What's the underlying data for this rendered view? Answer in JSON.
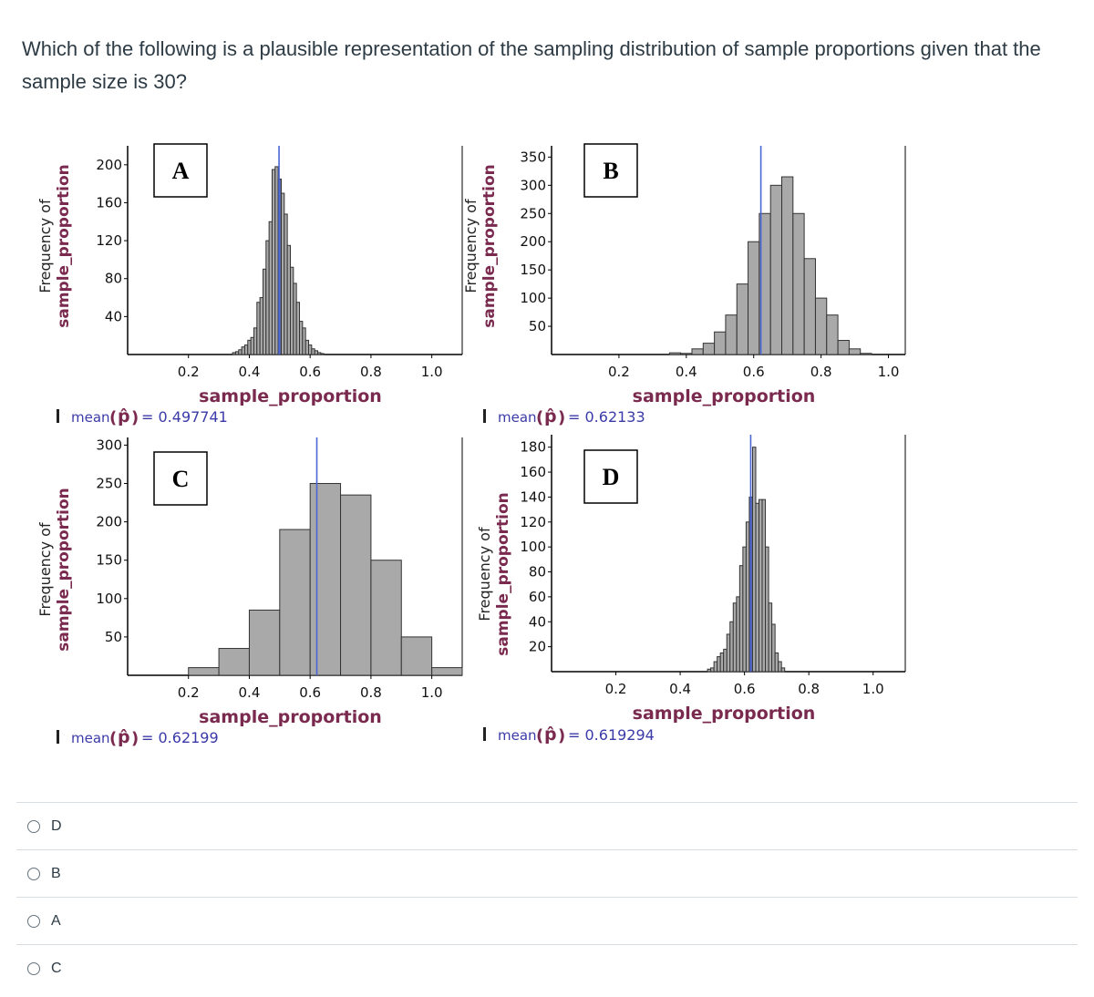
{
  "question": {
    "text": "Which of the following is a plausible representation of the sampling distribution of sample proportions given that the sample size is 30?"
  },
  "colors": {
    "bar_fill": "#a9a9a9",
    "mean_line": "#4a66d6",
    "mean_bar": "#5d6fb3"
  },
  "chart_data": [
    {
      "type": "bar",
      "panel_label": "A",
      "xlabel": "sample_proportion",
      "ylabel": "Frequency of sample_proportion",
      "xticks": [
        "0.2",
        "0.4",
        "0.6",
        "0.8",
        "1.0"
      ],
      "yticks": [
        "40",
        "80",
        "120",
        "160",
        "200"
      ],
      "xlim": [
        0.0,
        1.1
      ],
      "ylim": [
        0,
        220
      ],
      "bin_width": 0.01,
      "x": [
        0.35,
        0.36,
        0.37,
        0.38,
        0.39,
        0.4,
        0.41,
        0.42,
        0.43,
        0.44,
        0.45,
        0.46,
        0.47,
        0.48,
        0.49,
        0.5,
        0.51,
        0.52,
        0.53,
        0.54,
        0.55,
        0.56,
        0.57,
        0.58,
        0.59,
        0.6,
        0.61,
        0.62,
        0.63,
        0.64
      ],
      "values": [
        2,
        3,
        5,
        8,
        10,
        15,
        18,
        28,
        55,
        60,
        90,
        120,
        140,
        195,
        198,
        185,
        170,
        148,
        115,
        92,
        75,
        55,
        35,
        28,
        15,
        10,
        6,
        4,
        2,
        1
      ],
      "mean_value": 0.497741,
      "mean_label": "mean",
      "mean_text": "= 0.497741"
    },
    {
      "type": "bar",
      "panel_label": "B",
      "xlabel": "sample_proportion",
      "ylabel": "Frequency of sample_proportion",
      "xticks": [
        "0.2",
        "0.4",
        "0.6",
        "0.8",
        "1.0"
      ],
      "yticks": [
        "50",
        "100",
        "150",
        "200",
        "250",
        "300",
        "350"
      ],
      "xlim": [
        0.0,
        1.05
      ],
      "ylim": [
        0,
        370
      ],
      "bin_width": 0.0333,
      "x": [
        0.3667,
        0.4,
        0.4333,
        0.4667,
        0.5,
        0.5333,
        0.5667,
        0.6,
        0.6333,
        0.6667,
        0.7,
        0.7333,
        0.7667,
        0.8,
        0.8333,
        0.8667,
        0.9,
        0.9333
      ],
      "values": [
        3,
        2,
        10,
        20,
        40,
        70,
        125,
        200,
        250,
        300,
        315,
        250,
        170,
        100,
        70,
        25,
        10,
        2
      ],
      "mean_value": 0.62133,
      "mean_label": "mean",
      "mean_text": "= 0.62133"
    },
    {
      "type": "bar",
      "panel_label": "C",
      "xlabel": "sample_proportion",
      "ylabel": "Frequency of sample_proportion",
      "xticks": [
        "0.2",
        "0.4",
        "0.6",
        "0.8",
        "1.0"
      ],
      "yticks": [
        "50",
        "100",
        "150",
        "200",
        "250",
        "300"
      ],
      "xlim": [
        0.0,
        1.1
      ],
      "ylim": [
        0,
        310
      ],
      "bin_width": 0.1,
      "x": [
        0.25,
        0.35,
        0.45,
        0.55,
        0.65,
        0.75,
        0.85,
        0.95,
        1.05
      ],
      "values": [
        10,
        35,
        85,
        190,
        250,
        235,
        150,
        50,
        10
      ],
      "mean_value": 0.62199,
      "mean_label": "mean",
      "mean_text": "= 0.62199"
    },
    {
      "type": "bar",
      "panel_label": "D",
      "xlabel": "sample_proportion",
      "ylabel": "Frequency of sample_proportion",
      "xticks": [
        "0.2",
        "0.4",
        "0.6",
        "0.8",
        "1.0"
      ],
      "yticks": [
        "20",
        "40",
        "60",
        "80",
        "100",
        "120",
        "140",
        "160",
        "180"
      ],
      "xlim": [
        0.0,
        1.1
      ],
      "ylim": [
        0,
        190
      ],
      "bin_width": 0.01,
      "x": [
        0.49,
        0.5,
        0.51,
        0.52,
        0.53,
        0.54,
        0.55,
        0.56,
        0.57,
        0.58,
        0.59,
        0.6,
        0.61,
        0.62,
        0.63,
        0.64,
        0.65,
        0.66,
        0.67,
        0.68,
        0.69,
        0.7,
        0.71,
        0.72
      ],
      "values": [
        2,
        3,
        8,
        12,
        15,
        18,
        30,
        40,
        55,
        60,
        85,
        100,
        120,
        140,
        180,
        135,
        138,
        138,
        100,
        55,
        38,
        15,
        8,
        3
      ],
      "mean_value": 0.619294,
      "mean_label": "mean",
      "mean_text": "= 0.619294"
    }
  ],
  "options": [
    {
      "label": "D"
    },
    {
      "label": "B"
    },
    {
      "label": "A"
    },
    {
      "label": "C"
    }
  ]
}
